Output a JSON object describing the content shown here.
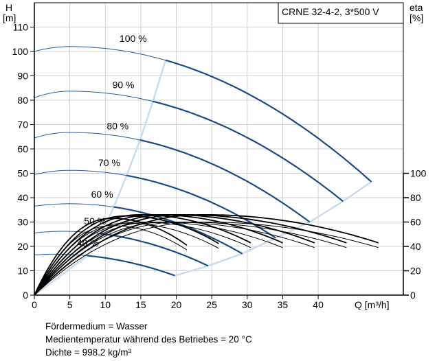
{
  "chart_data": {
    "type": "line",
    "title": "CRNE 32-4-2, 3*500 V",
    "xlabel": "Q [m³/h]",
    "ylabel_left": {
      "symbol": "H",
      "unit": "[m]"
    },
    "ylabel_right": {
      "symbol": "eta",
      "unit": "[%]"
    },
    "xlim": [
      0,
      52
    ],
    "ylim": [
      0,
      120
    ],
    "x_ticks": [
      "0",
      "5",
      "10",
      "15",
      "20",
      "25",
      "30",
      "35",
      "40"
    ],
    "y_ticks": [
      "0",
      "10",
      "20",
      "30",
      "40",
      "50",
      "60",
      "70",
      "80",
      "90",
      "100",
      "110"
    ],
    "eta_ticks": [
      "0",
      "20",
      "40",
      "60",
      "80",
      "100"
    ],
    "eta_scale": {
      "eta_0_at_H": 0,
      "eta_100_at_H": 50
    },
    "grid": true,
    "speed_curves": [
      {
        "label": "100 %",
        "H0": 100,
        "peak": 102,
        "qpeak": 5,
        "qmax": 47.5,
        "qop": 18.5,
        "hend": 46.5,
        "label_q": 12,
        "label_h": 104
      },
      {
        "label": "90 %",
        "H0": 81,
        "peak": 83.7,
        "qpeak": 5,
        "qmax": 43.5,
        "qop": 16.7,
        "hend": 38.5,
        "label_q": 11,
        "label_h": 85
      },
      {
        "label": "80 %",
        "H0": 64.5,
        "peak": 66.8,
        "qpeak": 5,
        "qmax": 38.8,
        "qop": 14.9,
        "hend": 30,
        "label_q": 10.2,
        "label_h": 68
      },
      {
        "label": "70 %",
        "H0": 49.5,
        "peak": 51.2,
        "qpeak": 5,
        "qmax": 34,
        "qop": 13,
        "hend": 23.5,
        "label_q": 9,
        "label_h": 53
      },
      {
        "label": "60 %",
        "H0": 36.5,
        "peak": 37.5,
        "qpeak": 5,
        "qmax": 29.3,
        "qop": 11.2,
        "hend": 17,
        "label_q": 8,
        "label_h": 40
      },
      {
        "label": "50 %",
        "H0": 25.5,
        "peak": 26.2,
        "qpeak": 4,
        "qmax": 24.5,
        "qop": 9.4,
        "hend": 12,
        "label_q": 7,
        "label_h": 29
      },
      {
        "label": "40 %",
        "H0": 16.5,
        "peak": 16.8,
        "qpeak": 3,
        "qmax": 19.8,
        "qop": 7.5,
        "hend": 8,
        "label_q": 6,
        "label_h": 20
      }
    ],
    "efficiency_curves": [
      {
        "qmax": 48.5,
        "peak_eta": 66,
        "qpeak": 24
      },
      {
        "qmax": 48.5,
        "peak_eta": 60,
        "qpeak": 24
      },
      {
        "qmax": 44,
        "peak_eta": 66,
        "qpeak": 21
      },
      {
        "qmax": 44,
        "peak_eta": 60,
        "qpeak": 21
      },
      {
        "qmax": 39.5,
        "peak_eta": 66,
        "qpeak": 19
      },
      {
        "qmax": 39.5,
        "peak_eta": 60,
        "qpeak": 19
      },
      {
        "qmax": 35,
        "peak_eta": 66,
        "qpeak": 17
      },
      {
        "qmax": 35,
        "peak_eta": 60,
        "qpeak": 17
      },
      {
        "qmax": 30.5,
        "peak_eta": 66,
        "qpeak": 15
      },
      {
        "qmax": 30.5,
        "peak_eta": 60,
        "qpeak": 15
      },
      {
        "qmax": 26,
        "peak_eta": 65,
        "qpeak": 13
      },
      {
        "qmax": 26,
        "peak_eta": 59,
        "qpeak": 13
      },
      {
        "qmax": 21.5,
        "peak_eta": 63,
        "qpeak": 11
      },
      {
        "qmax": 21.5,
        "peak_eta": 57,
        "qpeak": 11
      }
    ],
    "legend_position": "top-right"
  },
  "notes": [
    "Fördermedium = Wasser",
    "Medientemperatur während des Betriebes = 20 °C",
    "Dichte = 998.2 kg/m³"
  ],
  "colors": {
    "curve": "#1a4a8a",
    "curve_thin": "#1f5aa6",
    "envelope": "#c9dcee",
    "grid": "#d2d2d2",
    "efficiency": "#000000"
  }
}
